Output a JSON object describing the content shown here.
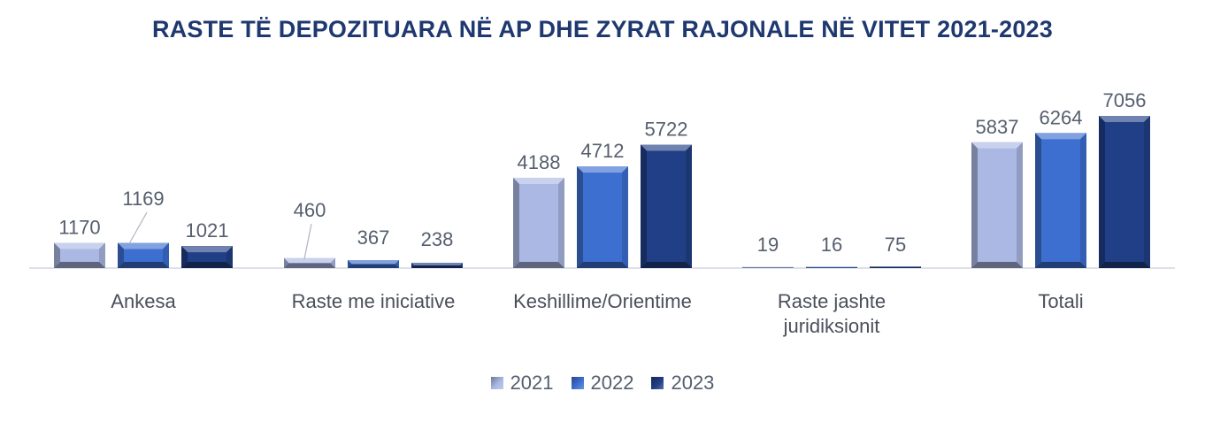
{
  "chart_data": {
    "type": "bar",
    "title": "RASTE TË DEPOZITUARA NË AP DHE ZYRAT RAJONALE NË VITET 2021-2023",
    "categories": [
      [
        "Ankesa"
      ],
      [
        "Raste me iniciative"
      ],
      [
        "Keshillime/Orientime"
      ],
      [
        "Raste jashte",
        "juridiksionit"
      ],
      [
        "Totali"
      ]
    ],
    "series": [
      {
        "name": "2021",
        "values": [
          1170,
          460,
          4188,
          19,
          5837
        ],
        "color": "#aab8e3"
      },
      {
        "name": "2022",
        "values": [
          1169,
          367,
          4712,
          16,
          6264
        ],
        "color": "#3d6fd1"
      },
      {
        "name": "2023",
        "values": [
          1021,
          238,
          5722,
          75,
          7056
        ],
        "color": "#213f86"
      }
    ],
    "ylim": [
      0,
      8000
    ],
    "legend_position": "bottom",
    "grid": false
  }
}
